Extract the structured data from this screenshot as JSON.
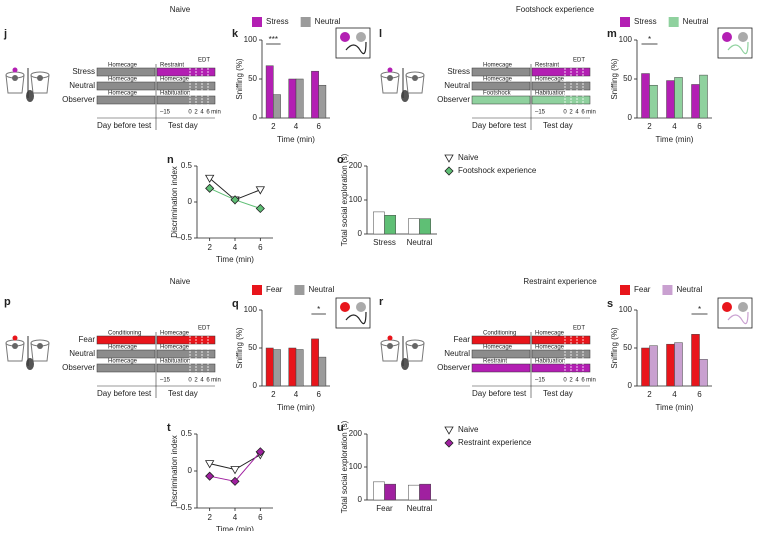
{
  "sections": [
    "Naive",
    "Footshock experience",
    "Naive",
    "Restraint experience"
  ],
  "diagrams": [
    {
      "label": "j",
      "edt": "EDT",
      "ticks": [
        "–15",
        "0",
        "2",
        "4",
        "6",
        "min"
      ],
      "days": [
        "Day before test",
        "Test day"
      ],
      "rows": [
        {
          "name": "Stress",
          "before": "Homecage",
          "before_color": "#8c8c8c",
          "test": "Restraint",
          "test_color": "#b31fb3"
        },
        {
          "name": "Neutral",
          "before": "Homecage",
          "before_color": "#8c8c8c",
          "test": "Homecage",
          "test_color": "#8c8c8c"
        },
        {
          "name": "Observer",
          "before": "Homecage",
          "before_color": "#8c8c8c",
          "test": "Habituation",
          "test_color": "#8c8c8c"
        }
      ]
    },
    {
      "label": "l",
      "edt": "EDT",
      "ticks": [
        "–15",
        "0",
        "2",
        "4",
        "6",
        "min"
      ],
      "days": [
        "Day before test",
        "Test day"
      ],
      "rows": [
        {
          "name": "Stress",
          "before": "Homecage",
          "before_color": "#8c8c8c",
          "test": "Restraint",
          "test_color": "#b31fb3"
        },
        {
          "name": "Neutral",
          "before": "Homecage",
          "before_color": "#8c8c8c",
          "test": "Homecage",
          "test_color": "#8c8c8c"
        },
        {
          "name": "Observer",
          "before": "Footshock",
          "before_color": "#8fd19e",
          "test": "Habituation",
          "test_color": "#8fd19e"
        }
      ]
    },
    {
      "label": "p",
      "edt": "EDT",
      "ticks": [
        "–15",
        "0",
        "2",
        "4",
        "6",
        "min"
      ],
      "days": [
        "Day before test",
        "Test day"
      ],
      "rows": [
        {
          "name": "Fear",
          "before": "Conditioning",
          "before_color": "#e8151b",
          "test": "Homecage",
          "test_color": "#e8151b"
        },
        {
          "name": "Neutral",
          "before": "Homecage",
          "before_color": "#8c8c8c",
          "test": "Homecage",
          "test_color": "#8c8c8c"
        },
        {
          "name": "Observer",
          "before": "Homecage",
          "before_color": "#8c8c8c",
          "test": "Habituation",
          "test_color": "#8c8c8c"
        }
      ]
    },
    {
      "label": "r",
      "edt": "EDT",
      "ticks": [
        "–15",
        "0",
        "2",
        "4",
        "6",
        "min"
      ],
      "days": [
        "Day before test",
        "Test day"
      ],
      "rows": [
        {
          "name": "Fear",
          "before": "Conditioning",
          "before_color": "#e8151b",
          "test": "Homecage",
          "test_color": "#e8151b"
        },
        {
          "name": "Neutral",
          "before": "Homecage",
          "before_color": "#8c8c8c",
          "test": "Homecage",
          "test_color": "#8c8c8c"
        },
        {
          "name": "Observer",
          "before": "Restraint",
          "before_color": "#b31fb3",
          "test": "Habituation",
          "test_color": "#b31fb3"
        }
      ]
    }
  ],
  "chart_data": [
    {
      "label": "k",
      "type": "bar",
      "categories": [
        "2",
        "4",
        "6"
      ],
      "series": [
        {
          "name": "Stress",
          "color": "#b31fb3",
          "values": [
            67,
            50,
            60
          ]
        },
        {
          "name": "Neutral",
          "color": "#9b9b9b",
          "values": [
            30,
            50,
            42
          ]
        }
      ],
      "ylim": [
        0,
        100
      ],
      "yticks": [
        0,
        50,
        100
      ],
      "y_label": "Sniffing (%)",
      "x_label": "Time (min)",
      "annotation": "***"
    },
    {
      "label": "m",
      "type": "bar",
      "categories": [
        "2",
        "4",
        "6"
      ],
      "series": [
        {
          "name": "Stress",
          "color": "#b31fb3",
          "values": [
            57,
            48,
            43
          ]
        },
        {
          "name": "Neutral",
          "color": "#8fd19e",
          "values": [
            42,
            52,
            55
          ]
        }
      ],
      "ylim": [
        0,
        100
      ],
      "yticks": [
        0,
        50,
        100
      ],
      "y_label": "Sniffing (%)",
      "x_label": "Time (min)",
      "annotation": "*"
    },
    {
      "label": "n",
      "type": "line",
      "x": [
        2,
        4,
        6
      ],
      "xlim": [
        1,
        7
      ],
      "xticks": [
        2,
        4,
        6
      ],
      "series": [
        {
          "name": "Naive",
          "color": "#ffffff",
          "marker": "triangle",
          "values": [
            0.33,
            0.03,
            0.17
          ]
        },
        {
          "name": "Footshock experience",
          "color": "#5fbf75",
          "marker": "diamond",
          "values": [
            0.19,
            0.03,
            -0.09
          ]
        }
      ],
      "ylim": [
        -0.5,
        0.5
      ],
      "yticks": [
        {
          "value": -0.5,
          "label": "–0.5"
        },
        0,
        0.5
      ],
      "y_label": "Discrimination index",
      "x_label": "Time (min)"
    },
    {
      "label": "o",
      "type": "bar",
      "categories": [
        "Stress",
        "Neutral"
      ],
      "series": [
        {
          "color": "#ffffff",
          "values": [
            65,
            45
          ]
        },
        {
          "color": "#5fbf75",
          "values": [
            55,
            45
          ]
        }
      ],
      "ylim": [
        0,
        200
      ],
      "yticks": [
        0,
        100,
        200
      ],
      "y_label": "Total social exploration (s)"
    },
    {
      "label": "q",
      "type": "bar",
      "categories": [
        "2",
        "4",
        "6"
      ],
      "series": [
        {
          "name": "Fear",
          "color": "#e8151b",
          "values": [
            50,
            50,
            62
          ]
        },
        {
          "name": "Neutral",
          "color": "#9b9b9b",
          "values": [
            48,
            48,
            38
          ]
        }
      ],
      "ylim": [
        0,
        100
      ],
      "yticks": [
        0,
        50,
        100
      ],
      "y_label": "Sniffing (%)",
      "x_label": "Time (min)",
      "annotation": "*"
    },
    {
      "label": "s",
      "type": "bar",
      "categories": [
        "2",
        "4",
        "6"
      ],
      "series": [
        {
          "name": "Fear",
          "color": "#e8151b",
          "values": [
            50,
            55,
            68
          ]
        },
        {
          "name": "Neutral",
          "color": "#c9a0d0",
          "values": [
            53,
            57,
            35
          ]
        }
      ],
      "ylim": [
        0,
        100
      ],
      "yticks": [
        0,
        50,
        100
      ],
      "y_label": "Sniffing (%)",
      "x_label": "Time (min)",
      "annotation": "*"
    },
    {
      "label": "t",
      "type": "line",
      "x": [
        2,
        4,
        6
      ],
      "xlim": [
        1,
        7
      ],
      "xticks": [
        2,
        4,
        6
      ],
      "series": [
        {
          "name": "Naive",
          "color": "#ffffff",
          "marker": "triangle",
          "values": [
            0.1,
            0.02,
            0.22
          ]
        },
        {
          "name": "Restraint experience",
          "color": "#a020a0",
          "marker": "diamond",
          "values": [
            -0.07,
            -0.14,
            0.26
          ]
        }
      ],
      "ylim": [
        -0.5,
        0.5
      ],
      "yticks": [
        {
          "value": -0.5,
          "label": "–0.5"
        },
        0,
        0.5
      ],
      "y_label": "Discrimination index",
      "x_label": "Time (min)"
    },
    {
      "label": "u",
      "type": "bar",
      "categories": [
        "Fear",
        "Neutral"
      ],
      "series": [
        {
          "color": "#ffffff",
          "values": [
            55,
            45
          ]
        },
        {
          "color": "#a020a0",
          "values": [
            48,
            48
          ]
        }
      ],
      "ylim": [
        0,
        200
      ],
      "yticks": [
        0,
        100,
        200
      ],
      "y_label": "Total social exploration (s)"
    }
  ]
}
